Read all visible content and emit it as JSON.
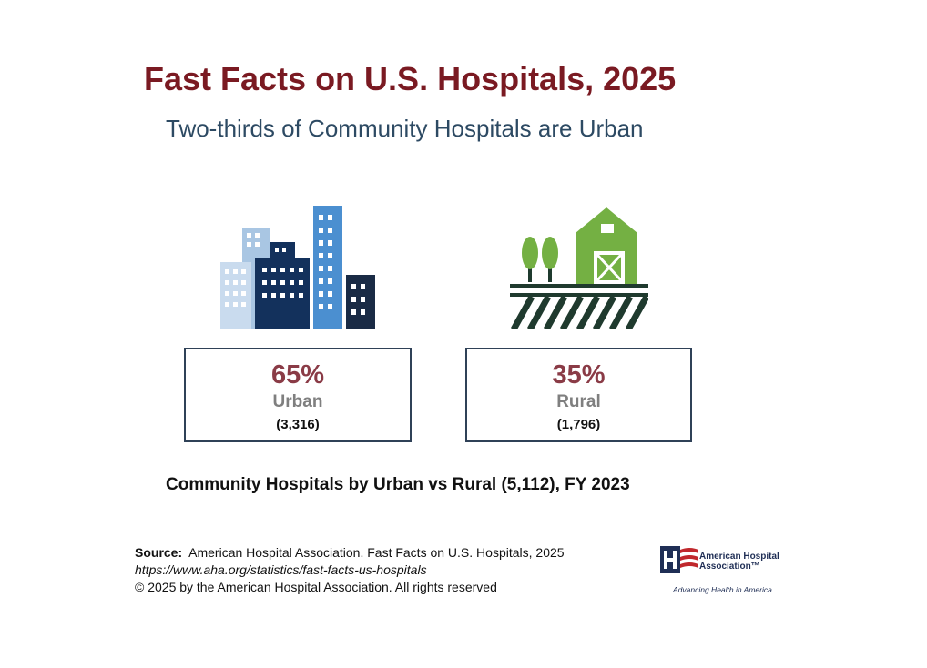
{
  "header": {
    "title": "Fast Facts on U.S. Hospitals, 2025",
    "subtitle": "Two-thirds of Community Hospitals are Urban"
  },
  "icons": {
    "urban": "city-buildings-icon",
    "rural": "farm-barn-icon"
  },
  "stats": {
    "urban": {
      "percent": "65%",
      "label": "Urban",
      "count": "(3,316)"
    },
    "rural": {
      "percent": "35%",
      "label": "Rural",
      "count": "(1,796)"
    }
  },
  "caption": "Community Hospitals by Urban vs Rural (5,112), FY 2023",
  "source": {
    "label": "Source:",
    "text": "American Hospital Association.  Fast Facts on U.S. Hospitals, 2025",
    "url": "https://www.aha.org/statistics/fast-facts-us-hospitals",
    "copyright": "© 2025 by the American Hospital Association. All rights reserved"
  },
  "logo": {
    "name": "American Hospital\nAssociation™",
    "tagline": "Advancing Health in America"
  },
  "colors": {
    "title": "#7a1a22",
    "subtitle": "#2d4a63",
    "percent": "#8a3b46",
    "category": "#7f7f7f",
    "box_border": "#2f4157",
    "city_light": "#a9c6e3",
    "city_mid": "#4b8fd0",
    "city_dark": "#13315c",
    "farm_green": "#74b043",
    "farm_dark": "#1f3a2e"
  }
}
